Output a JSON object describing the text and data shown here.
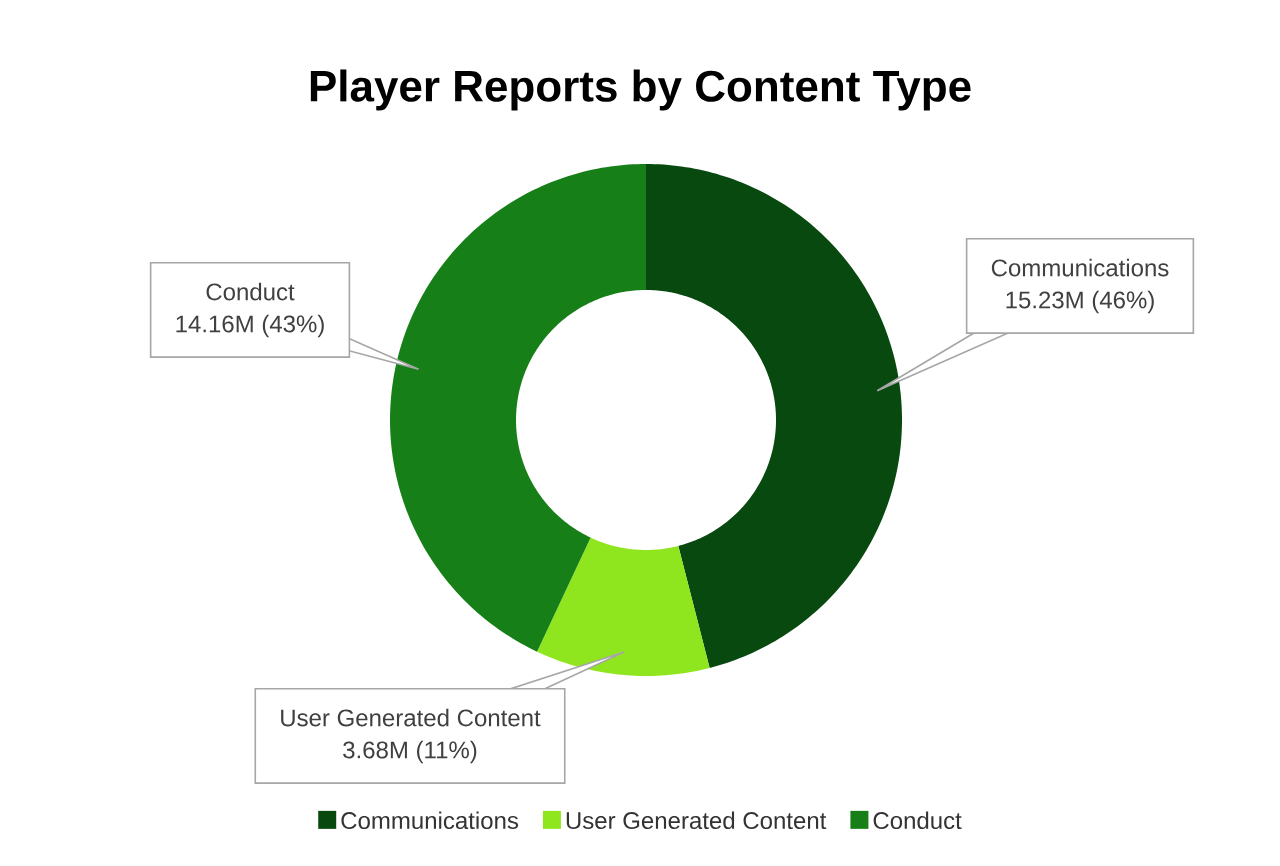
{
  "chart_data": {
    "type": "donut",
    "title": "Player Reports by Content Type",
    "categories": [
      "Communications",
      "User Generated Content",
      "Conduct"
    ],
    "values": [
      46,
      11,
      43
    ],
    "value_labels": [
      "15.23M (46%)",
      "3.68M (11%)",
      "14.16M (43%)"
    ],
    "colors": [
      "#08490f",
      "#8fe61f",
      "#167f17"
    ],
    "legend": "bottom"
  }
}
